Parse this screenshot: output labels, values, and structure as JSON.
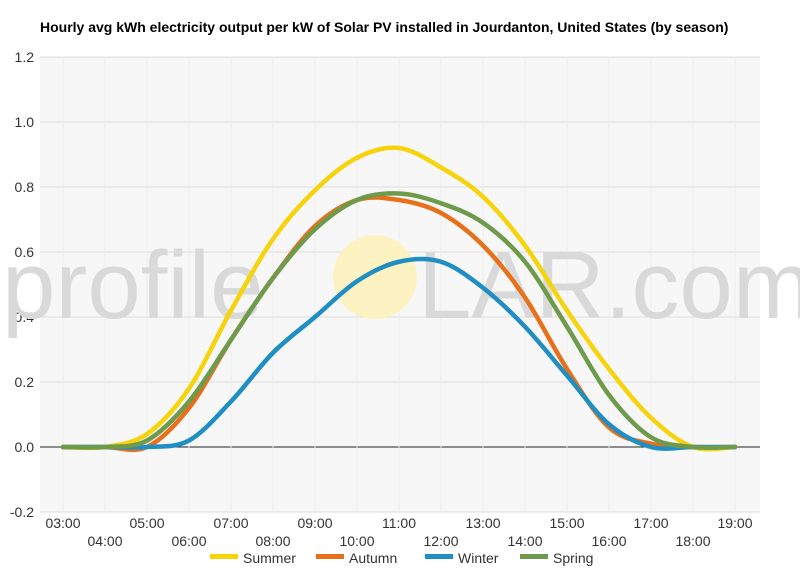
{
  "chart_data": {
    "type": "line",
    "title": "Hourly avg kWh electricity output per kW of Solar PV installed in Jourdanton, United States (by season)",
    "xlabel": "",
    "ylabel": "",
    "x": [
      "03:00",
      "04:00",
      "05:00",
      "06:00",
      "07:00",
      "08:00",
      "09:00",
      "10:00",
      "11:00",
      "12:00",
      "13:00",
      "14:00",
      "15:00",
      "16:00",
      "17:00",
      "18:00",
      "19:00"
    ],
    "ylim": [
      -0.2,
      1.2
    ],
    "yticks": [
      "-0.2",
      "0.0",
      "0.2",
      "0.4",
      "0.6",
      "0.8",
      "1.0",
      "1.2"
    ],
    "grid": true,
    "legend_position": "bottom",
    "watermark": {
      "left": "profile",
      "right": "LAR.com",
      "left_color": "#cccccc",
      "right_color": "#d0d0d0",
      "sun_color": "#fdf3c2"
    },
    "series": [
      {
        "name": "Summer",
        "color": "#f6d30a",
        "values": [
          0.0,
          0.0,
          0.04,
          0.18,
          0.42,
          0.64,
          0.79,
          0.89,
          0.92,
          0.86,
          0.77,
          0.62,
          0.42,
          0.24,
          0.09,
          0.0,
          0.0
        ]
      },
      {
        "name": "Autumn",
        "color": "#e8701b",
        "values": [
          0.0,
          0.0,
          0.0,
          0.12,
          0.33,
          0.52,
          0.68,
          0.76,
          0.76,
          0.72,
          0.62,
          0.46,
          0.24,
          0.06,
          0.01,
          0.0,
          0.0
        ]
      },
      {
        "name": "Winter",
        "color": "#1f8ec2",
        "values": [
          0.0,
          0.0,
          0.0,
          0.02,
          0.14,
          0.29,
          0.4,
          0.51,
          0.57,
          0.57,
          0.49,
          0.37,
          0.22,
          0.07,
          0.0,
          0.0,
          0.0
        ]
      },
      {
        "name": "Spring",
        "color": "#6e9a4c",
        "values": [
          0.0,
          0.0,
          0.02,
          0.14,
          0.33,
          0.52,
          0.67,
          0.76,
          0.78,
          0.75,
          0.69,
          0.57,
          0.37,
          0.16,
          0.03,
          0.0,
          0.0
        ]
      }
    ]
  }
}
